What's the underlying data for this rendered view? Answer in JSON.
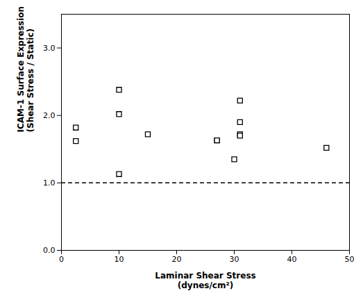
{
  "chart_data": {
    "type": "scatter",
    "x": [
      2.5,
      2.5,
      10,
      10,
      10,
      15,
      27,
      27,
      30,
      31,
      31,
      31,
      31,
      46
    ],
    "values": [
      1.62,
      1.82,
      2.02,
      2.38,
      1.13,
      1.72,
      1.63,
      1.63,
      1.35,
      1.72,
      1.9,
      1.7,
      2.22,
      1.52
    ],
    "xlabel": "Laminar Shear Stress\n(dynes/cm²)",
    "ylabel": "ICAM-1 Surface Expression\n(Shear Stress / Static)",
    "xlim": [
      0,
      50
    ],
    "ylim": [
      0,
      3.5
    ],
    "xticks": [
      0,
      10,
      20,
      30,
      40,
      50
    ],
    "yticks": [
      0,
      1,
      2,
      3
    ],
    "marker": "square",
    "color": "black",
    "grid": false,
    "hline": {
      "value": 1.0,
      "line_style": "dashed",
      "color": "black"
    }
  }
}
